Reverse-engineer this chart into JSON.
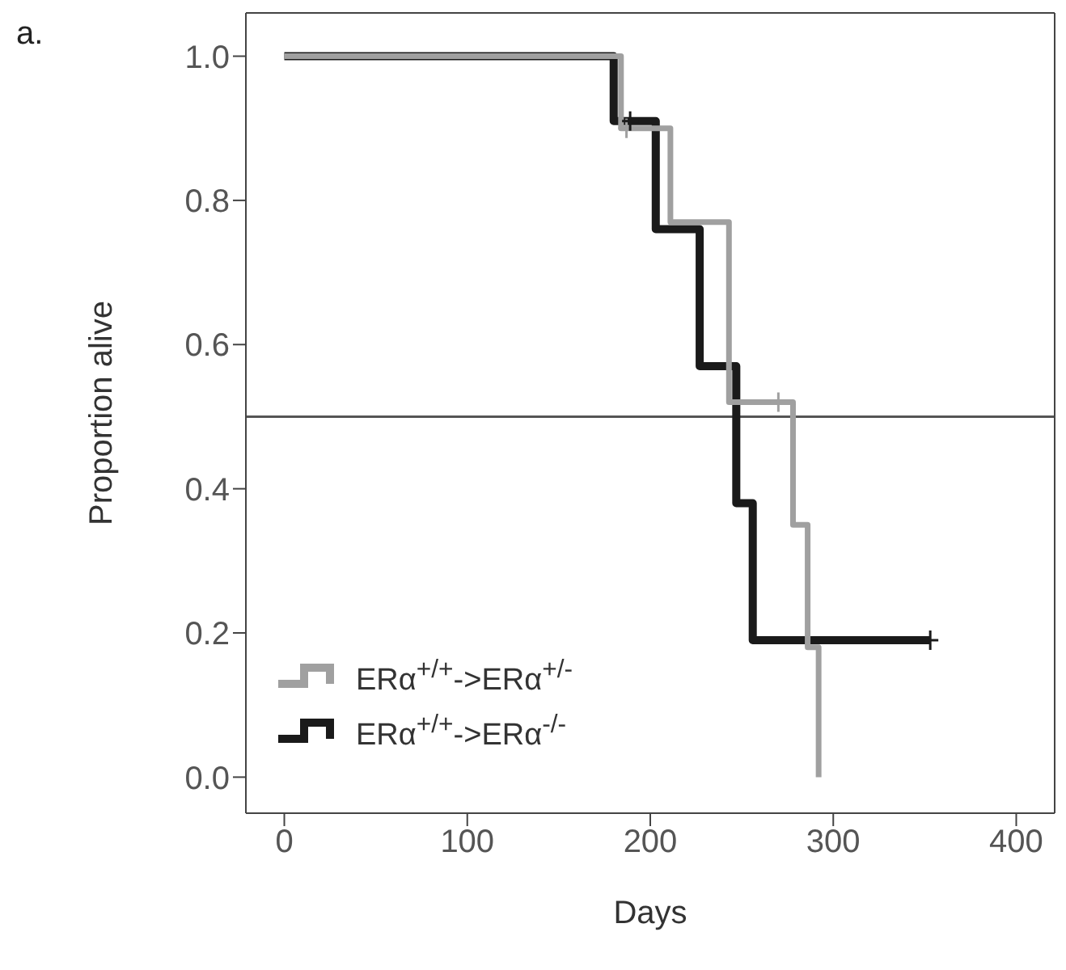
{
  "chart_data": {
    "type": "step",
    "xlabel": "Days",
    "ylabel": "Proportion alive",
    "annotations": [
      "a."
    ],
    "xlim": [
      -21,
      421
    ],
    "xticks": [
      0,
      100,
      200,
      300,
      400
    ],
    "ylim": [
      -0.05,
      1.06
    ],
    "yticks": [
      {
        "value": 0,
        "label": "0.0"
      },
      0.2,
      0.4,
      0.6,
      0.8,
      {
        "value": 1,
        "label": "1.0"
      }
    ],
    "grid": false,
    "legend": "bottom left",
    "ref_lines": [
      {
        "axis": "y",
        "value": 0.5,
        "color": "#555555"
      }
    ],
    "series": [
      {
        "name": "ERα$^{+/+}$->ERα$^{+/-}$",
        "color": "#a0a0a0",
        "x": [
          0,
          184,
          211,
          243,
          278,
          286,
          292
        ],
        "values": [
          1,
          0.9,
          0.77,
          0.52,
          0.35,
          0.18,
          0
        ]
      },
      {
        "name": "ERα$^{+/+}$->ERα$^{-/-}$",
        "color": "#1a1a1a",
        "x": [
          0,
          180,
          203,
          227,
          247,
          256,
          353
        ],
        "values": [
          1,
          0.91,
          0.76,
          0.57,
          0.38,
          0.19,
          0.19
        ]
      },
      {
        "color": "#a0a0a0",
        "type": "scatter",
        "marker": "cross",
        "x": [
          187,
          270
        ],
        "values": [
          0.9,
          0.52
        ]
      },
      {
        "color": "#1a1a1a",
        "type": "scatter",
        "marker": "cross",
        "x": [
          189,
          353
        ],
        "values": [
          0.91,
          0.19
        ]
      }
    ]
  }
}
